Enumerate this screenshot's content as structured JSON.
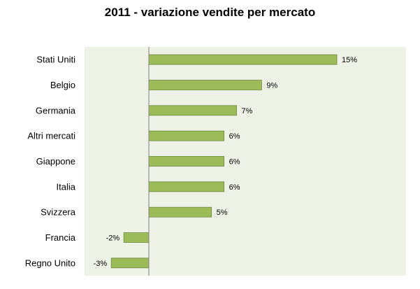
{
  "chart_data": {
    "type": "bar",
    "orientation": "horizontal",
    "title": "2011 - variazione vendite per mercato",
    "categories": [
      "Stati Uniti",
      "Belgio",
      "Germania",
      "Altri mercati",
      "Giappone",
      "Italia",
      "Svizzera",
      "Francia",
      "Regno Unito"
    ],
    "values": [
      15,
      9,
      7,
      6,
      6,
      6,
      5,
      -2,
      -3
    ],
    "data_labels": [
      "15%",
      "9%",
      "7%",
      "6%",
      "6%",
      "6%",
      "5%",
      "-2%",
      "-3%"
    ],
    "xlim": [
      -4,
      18
    ],
    "grid": false,
    "legend": "none",
    "colors": {
      "bar_fill": "#9bbb59",
      "bar_stroke": "#71893f",
      "plot_background": "#eef2e6",
      "axis": "#7f7f7f"
    }
  }
}
